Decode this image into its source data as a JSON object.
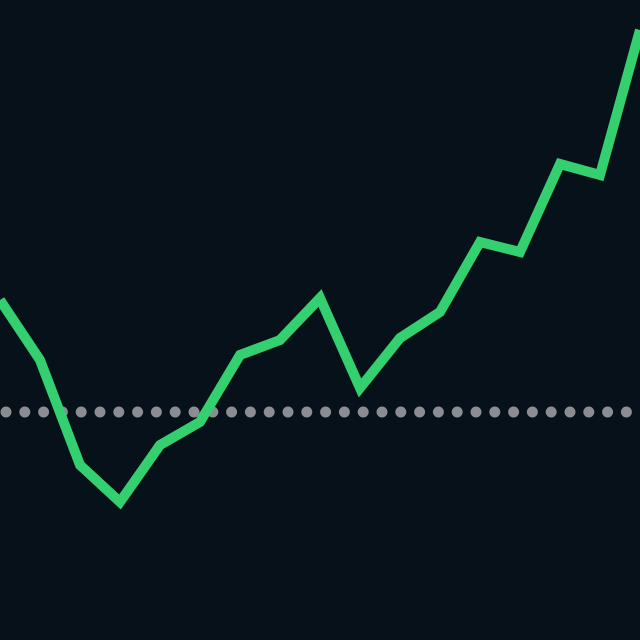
{
  "chart_data": {
    "type": "line",
    "categories": [
      null,
      null,
      null,
      null,
      null,
      null,
      null,
      null,
      null,
      null,
      null,
      null,
      null,
      null,
      null,
      null,
      null
    ],
    "series": [
      {
        "color": "#34d06f",
        "values": [
          340,
          280,
          175,
          138,
          195,
          218,
          285,
          300,
          342,
          252,
          302,
          328,
          398,
          388,
          476,
          465,
          610
        ]
      }
    ],
    "ylim": [
      0,
      640
    ],
    "reference_line": 228,
    "reference_color": "#8a8d91",
    "background": "#06111a"
  }
}
